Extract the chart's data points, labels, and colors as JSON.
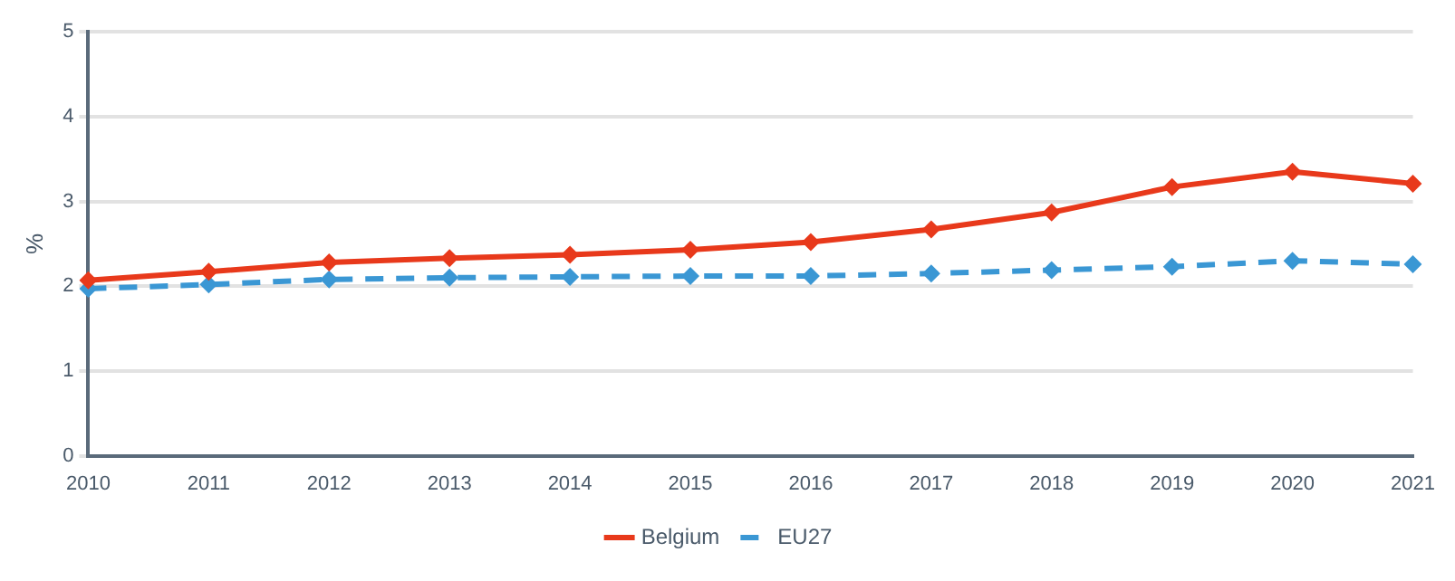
{
  "chart_data": {
    "type": "line",
    "ylabel": "%",
    "categories": [
      "2010",
      "2011",
      "2012",
      "2013",
      "2014",
      "2015",
      "2016",
      "2017",
      "2018",
      "2019",
      "2020",
      "2021"
    ],
    "series": [
      {
        "name": "Belgium",
        "color": "#e8391b",
        "line_style": "solid",
        "values": [
          2.07,
          2.17,
          2.28,
          2.33,
          2.37,
          2.43,
          2.52,
          2.67,
          2.87,
          3.17,
          3.35,
          3.21
        ]
      },
      {
        "name": "EU27",
        "color": "#3a97d4",
        "line_style": "dashed",
        "values": [
          1.97,
          2.02,
          2.08,
          2.1,
          2.11,
          2.12,
          2.12,
          2.15,
          2.19,
          2.23,
          2.3,
          2.26
        ]
      }
    ],
    "ylim": [
      0,
      5
    ],
    "yticks": [
      0,
      1,
      2,
      3,
      4,
      5
    ],
    "grid": "y",
    "legend": "bottom",
    "marker": "diamond"
  }
}
